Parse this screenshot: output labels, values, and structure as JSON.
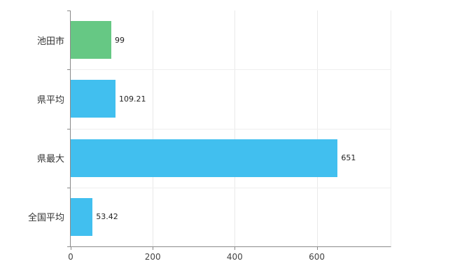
{
  "chart_data": {
    "type": "bar",
    "orientation": "horizontal",
    "title": "",
    "xlabel": "",
    "ylabel": "",
    "categories": [
      "池田市",
      "県平均",
      "県最大",
      "全国平均"
    ],
    "values": [
      99,
      109.21,
      651,
      53.42
    ],
    "value_labels": [
      "99",
      "109.21",
      "651",
      "53.42"
    ],
    "bar_colors": [
      "#66c884",
      "#41bfef",
      "#41bfef",
      "#41bfef"
    ],
    "xticks": [
      0,
      200,
      400,
      600
    ],
    "xtick_labels": [
      "0",
      "200",
      "400",
      "600"
    ],
    "xlim": [
      0,
      780
    ],
    "grid": "on",
    "legend": "none",
    "colors": {
      "axis": "#8a8a8a",
      "gridline": "#e9e9e9",
      "background": "#ffffff",
      "green_bar": "#66c884",
      "blue_bar": "#41bfef"
    }
  }
}
